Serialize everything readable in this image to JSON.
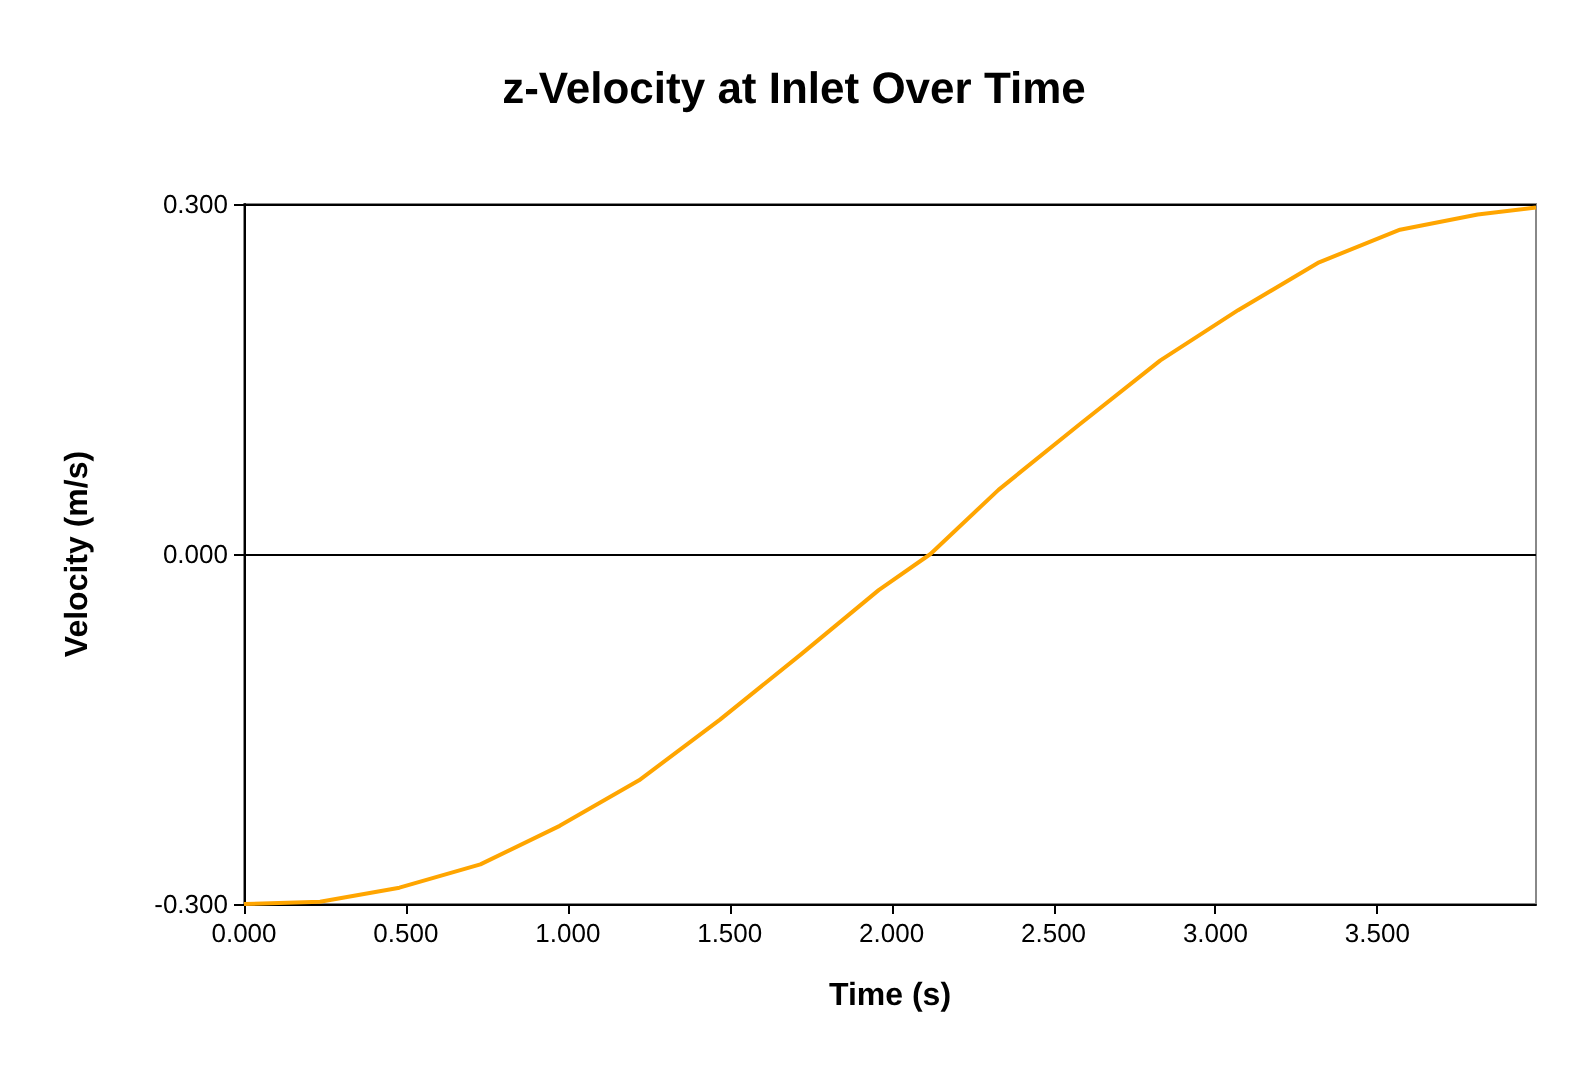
{
  "chart_data": {
    "type": "line",
    "title": "z-Velocity at Inlet Over Time",
    "xlabel": "Time (s)",
    "ylabel": "Velocity (m/s)",
    "x": [
      0,
      0.235,
      0.48,
      0.73,
      0.975,
      1.22,
      1.47,
      1.72,
      1.96,
      2.12,
      2.33,
      2.58,
      2.83,
      3.07,
      3.32,
      3.57,
      3.81,
      3.99
    ],
    "series": [
      {
        "color": "#ffa500",
        "values": [
          -0.3,
          -0.298,
          -0.286,
          -0.266,
          -0.233,
          -0.194,
          -0.142,
          -0.086,
          -0.031,
          0,
          0.055,
          0.111,
          0.166,
          0.209,
          0.25,
          0.278,
          0.291,
          0.297
        ]
      }
    ],
    "xlim": [
      0,
      3.99
    ],
    "xticks": [
      {
        "value": 0,
        "label": "0.000"
      },
      {
        "value": 0.5,
        "label": "0.500"
      },
      {
        "value": 1,
        "label": "1.000"
      },
      {
        "value": 1.5,
        "label": "1.500"
      },
      {
        "value": 2,
        "label": "2.000"
      },
      {
        "value": 2.5,
        "label": "2.500"
      },
      {
        "value": 3,
        "label": "3.000"
      },
      {
        "value": 3.5,
        "label": "3.500"
      }
    ],
    "ylim": [
      -0.3,
      0.3
    ],
    "yticks": [
      {
        "value": -0.3,
        "label": "-0.300"
      },
      {
        "value": 0,
        "label": "0.000"
      },
      {
        "value": 0.3,
        "label": "0.300"
      }
    ],
    "grid": "y",
    "marker": "none",
    "line_style": "solid"
  }
}
